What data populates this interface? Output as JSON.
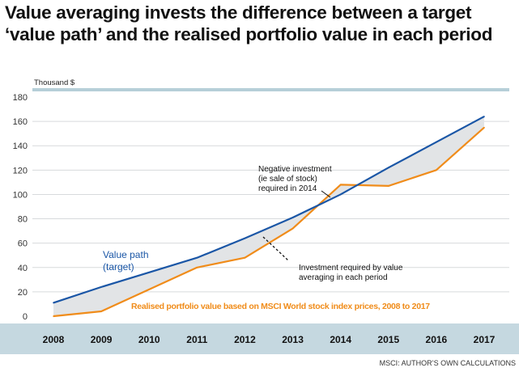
{
  "title": "Value averaging invests the difference between a target ‘value path’ and the realised portfolio value in each period",
  "source": "MSCI: AUTHOR’S OWN CALCULATIONS",
  "colors": {
    "target_line": "#1a56a6",
    "realised_line": "#f08c1a",
    "gap_fill": "#e2e4e6",
    "axis_band": "#c5d8e0",
    "top_rule": "#b6cfd8",
    "grid": "#d7dadc"
  },
  "chart_data": {
    "type": "line",
    "ylabel": "Thousand $",
    "ylim": [
      0,
      180
    ],
    "yticks": [
      0,
      20,
      40,
      60,
      80,
      100,
      120,
      140,
      160,
      180
    ],
    "grid": true,
    "categories": [
      "2008",
      "2009",
      "2010",
      "2011",
      "2012",
      "2013",
      "2014",
      "2015",
      "2016",
      "2017"
    ],
    "series": [
      {
        "name": "Value path (target)",
        "key": "target",
        "values": [
          11,
          24,
          36,
          48,
          64,
          81,
          100,
          122,
          143,
          164
        ]
      },
      {
        "name": "Realised portfolio value based on MSCI World stock index prices, 2008 to 2017",
        "key": "realised",
        "values": [
          0,
          4,
          22,
          40,
          48,
          72,
          108,
          107,
          120,
          155
        ]
      }
    ],
    "shaded_area": "difference between target and realised values",
    "annotations": [
      {
        "text": [
          "Negative investment",
          "(ie sale of stock)",
          "required in 2014"
        ]
      },
      {
        "text": [
          "Investment required by value",
          "averaging in each period"
        ]
      }
    ]
  }
}
